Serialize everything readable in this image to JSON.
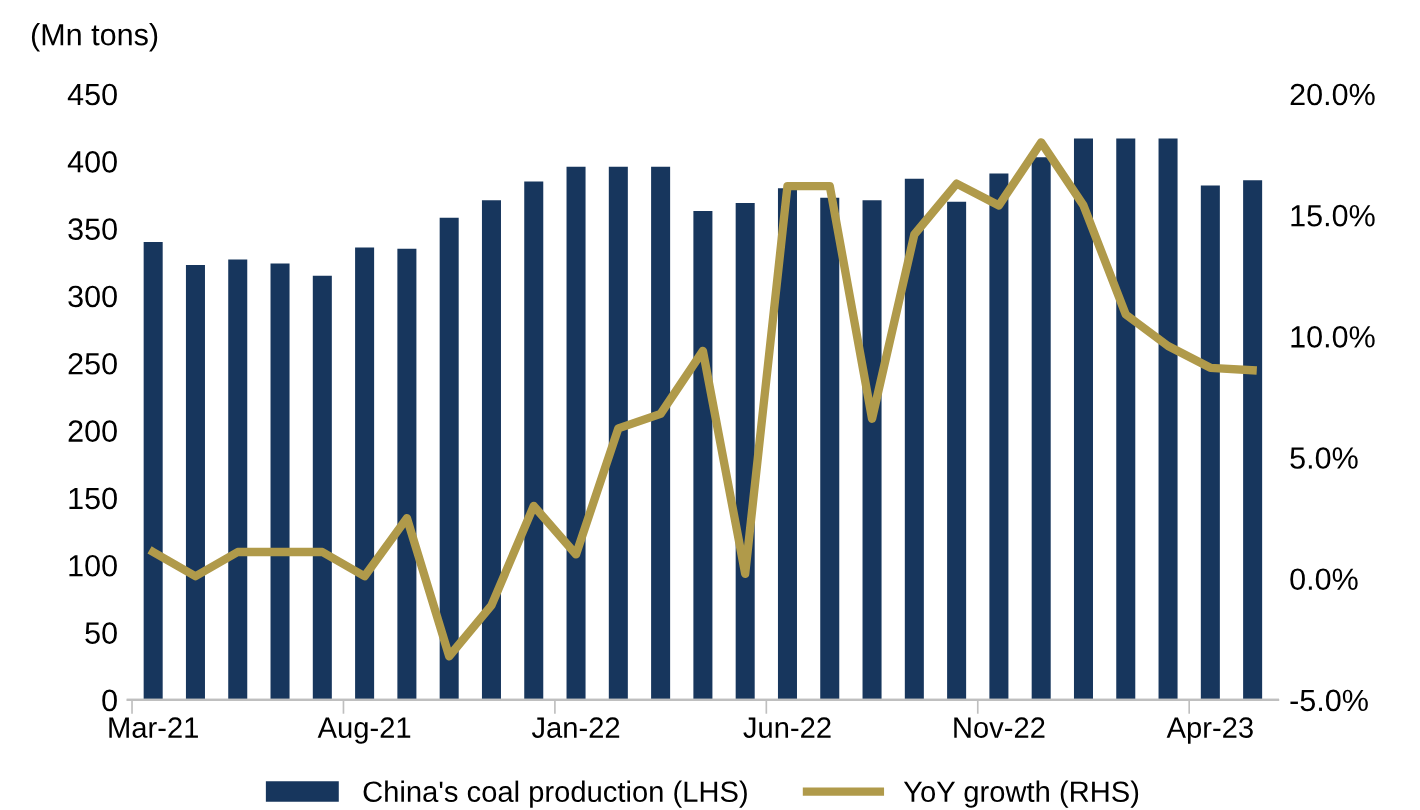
{
  "chart_data": {
    "type": "bar",
    "ylabel": "(Mn tons)",
    "categories": [
      "Mar-21",
      null,
      null,
      null,
      null,
      "Aug-21",
      null,
      null,
      null,
      null,
      "Jan-22",
      null,
      null,
      null,
      null,
      "Jun-22",
      null,
      null,
      null,
      null,
      "Nov-22",
      null,
      null,
      null,
      null,
      "Apr-23",
      null
    ],
    "series": [
      {
        "name": "China's coal production (LHS)",
        "color": "#17365d",
        "values": [
          340,
          323,
          327,
          324,
          315,
          336,
          335,
          358,
          371,
          385,
          396,
          396,
          396,
          363,
          369,
          380,
          373,
          371,
          387,
          370,
          391,
          403,
          417,
          417,
          417,
          382,
          386
        ]
      },
      {
        "name": "YoY growth (RHS)",
        "type": "line",
        "axis": "y2",
        "color": "#b09a4a",
        "values": [
          1.1,
          0.1,
          1.1,
          1.1,
          1.1,
          0.1,
          2.5,
          -3.2,
          -1.1,
          3.0,
          1.0,
          6.2,
          6.8,
          9.4,
          0.2,
          16.2,
          16.2,
          6.6,
          14.2,
          16.3,
          15.4,
          18.0,
          15.4,
          10.9,
          9.6,
          8.7,
          8.6
        ]
      }
    ],
    "ylim": [
      0,
      450
    ],
    "yticks": [
      0,
      50,
      100,
      150,
      200,
      250,
      300,
      350,
      400,
      450
    ],
    "y2lim": [
      -5,
      20
    ],
    "y2ticks": [
      {
        "value": -5,
        "label": "-5.0%"
      },
      {
        "value": 0,
        "label": "0.0%"
      },
      {
        "value": 5,
        "label": "5.0%"
      },
      {
        "value": 10,
        "label": "10.0%"
      },
      {
        "value": 15,
        "label": "15.0%"
      },
      {
        "value": 20,
        "label": "20.0%"
      }
    ],
    "legend": "bottom",
    "grid": false,
    "marker": "none",
    "line_style": "solid"
  }
}
